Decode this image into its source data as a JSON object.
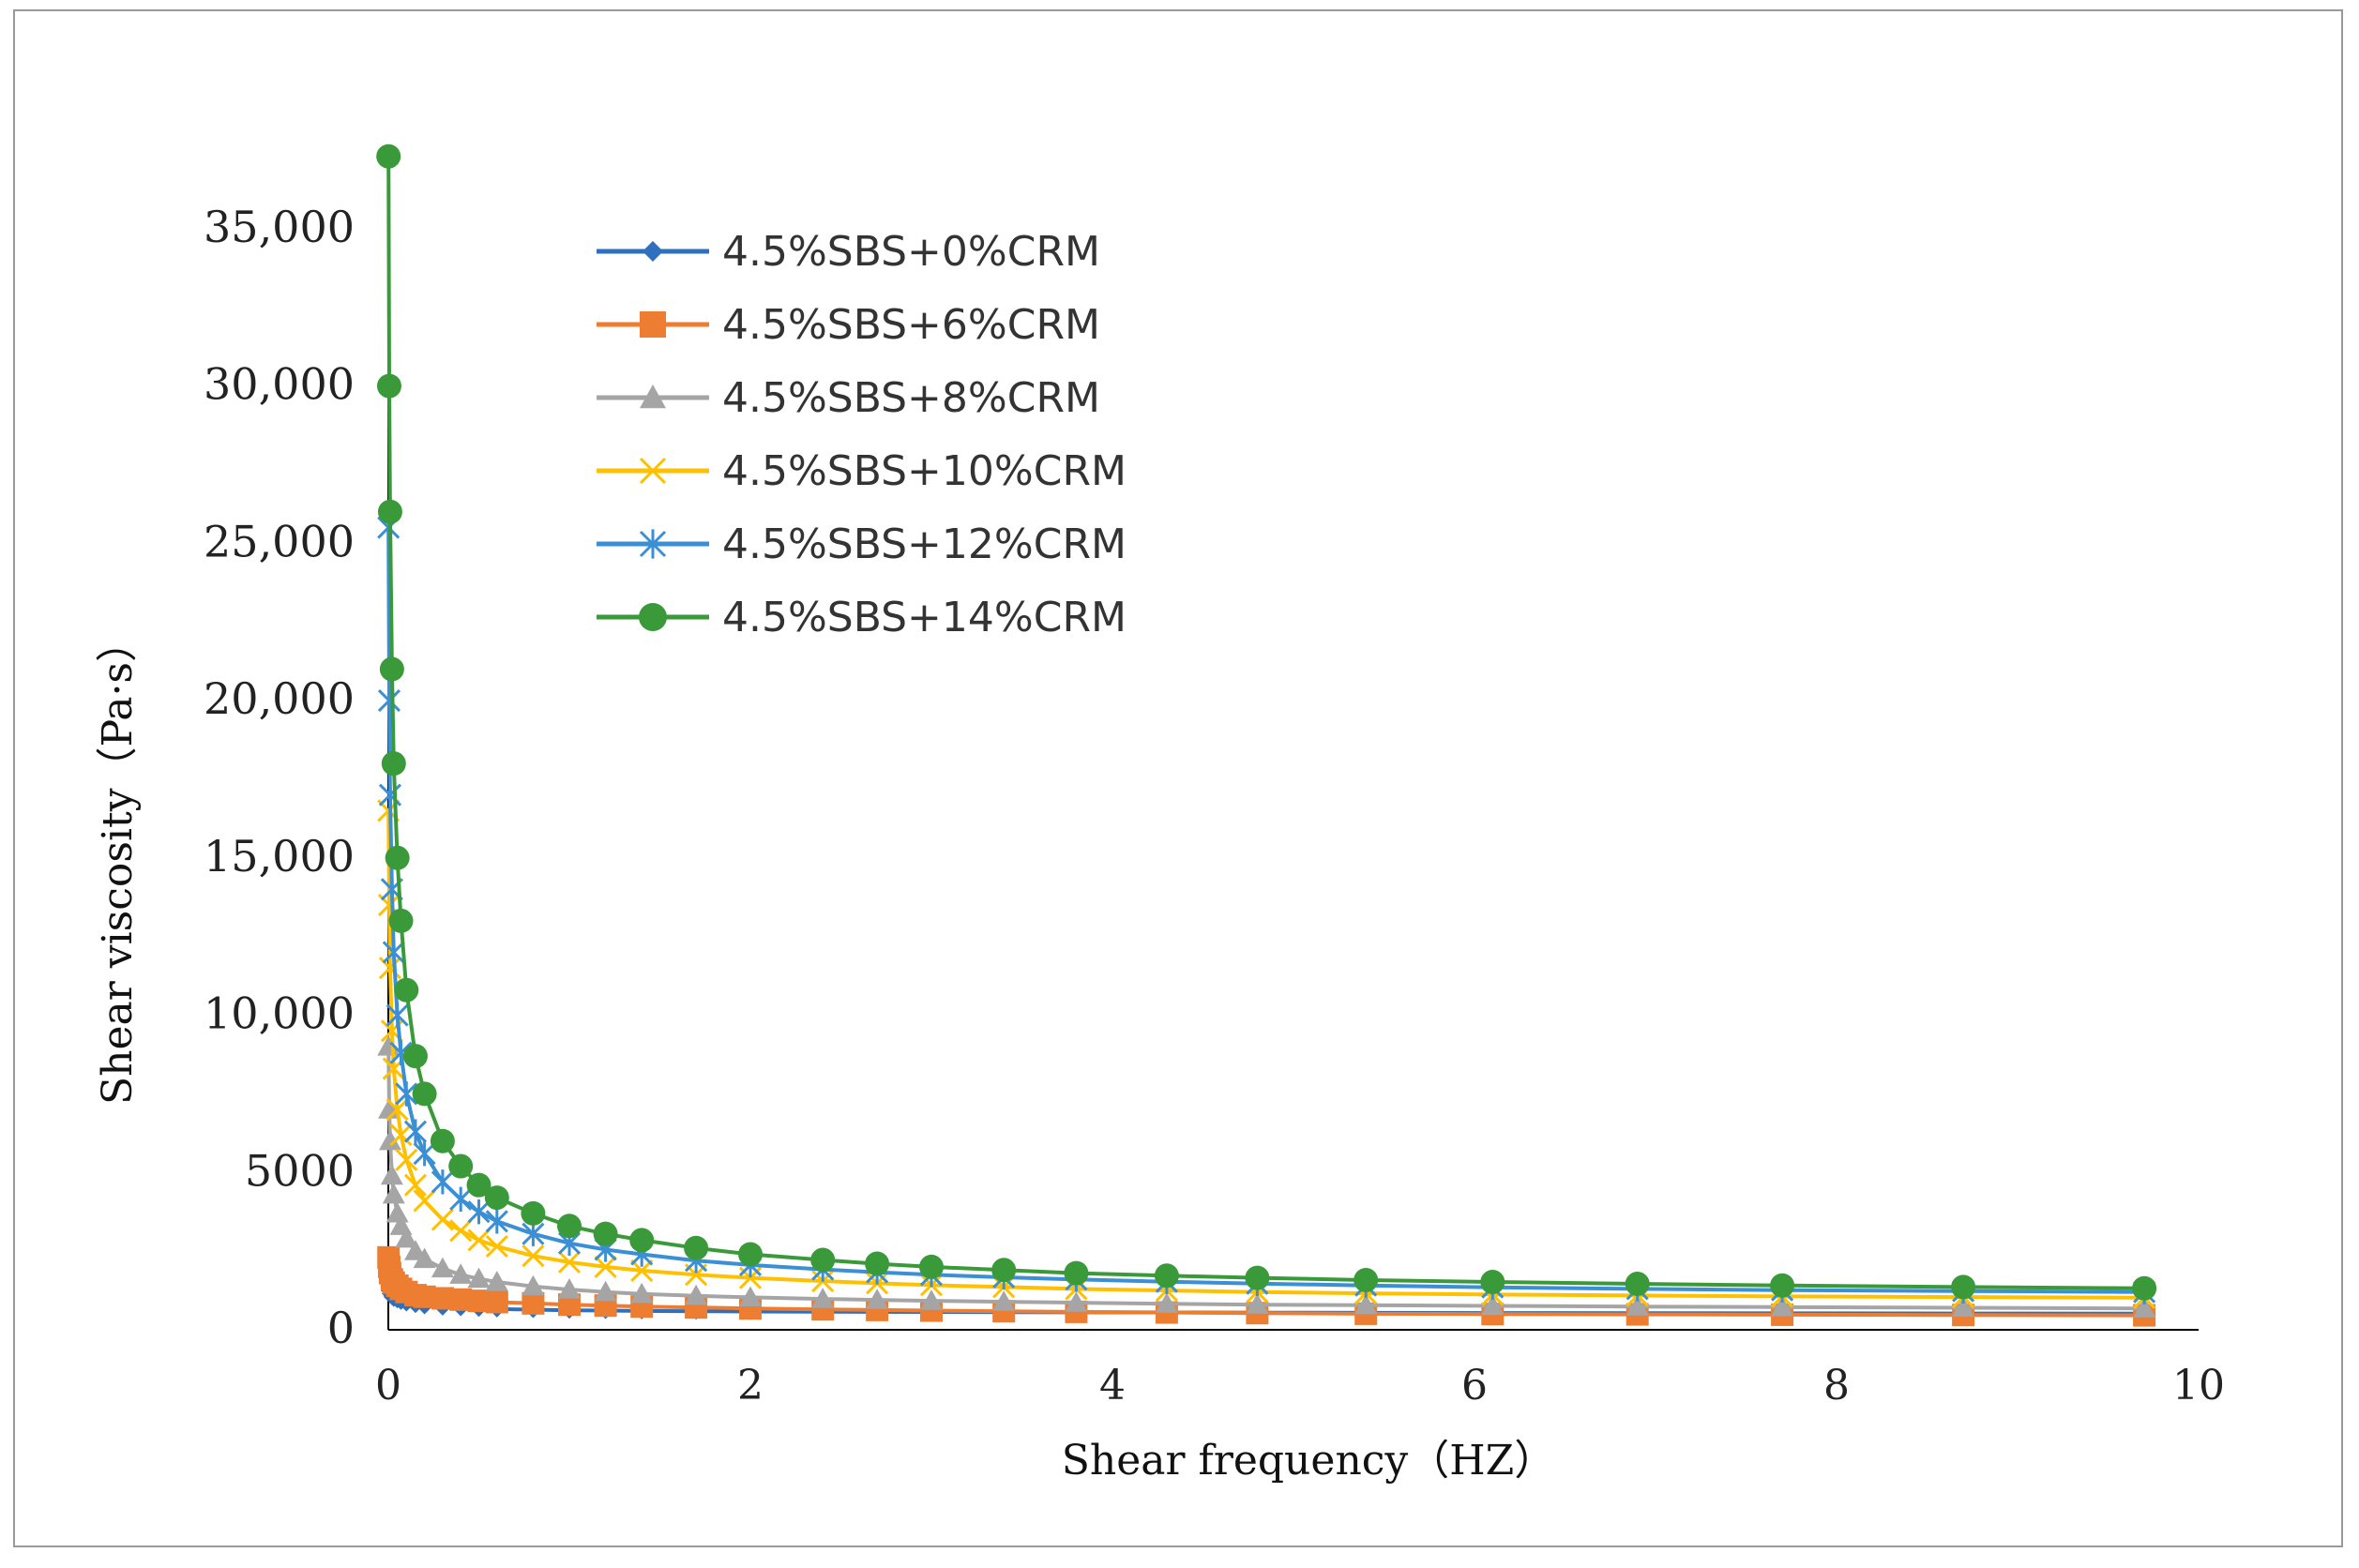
{
  "chart_data": {
    "type": "line",
    "title": "",
    "xlabel": "Shear frequency（HZ）",
    "ylabel": "Shear viscosity（Pa·s）",
    "xlim": [
      0,
      10
    ],
    "ylim": [
      0,
      37500
    ],
    "x_ticks": [
      0,
      2,
      4,
      6,
      8,
      10
    ],
    "x_tick_labels": [
      "0",
      "2",
      "4",
      "6",
      "8",
      "10"
    ],
    "y_ticks": [
      0,
      5000,
      10000,
      15000,
      20000,
      25000,
      30000,
      35000
    ],
    "y_tick_labels": [
      "0",
      "5000",
      "10,000",
      "15,000",
      "20,000",
      "25,000",
      "30,000",
      "35,000"
    ],
    "grid": false,
    "legend_position": "top-left",
    "x": [
      0.001,
      0.005,
      0.01,
      0.02,
      0.03,
      0.05,
      0.07,
      0.1,
      0.15,
      0.2,
      0.3,
      0.4,
      0.5,
      0.6,
      0.8,
      1.0,
      1.2,
      1.4,
      1.7,
      2.0,
      2.4,
      2.7,
      3.0,
      3.4,
      3.8,
      4.3,
      4.8,
      5.4,
      6.1,
      6.9,
      7.7,
      8.7,
      9.7
    ],
    "series": [
      {
        "name": "4.5%SBS+0%CRM",
        "color": "#2e6fbe",
        "marker": "diamond",
        "values": [
          1500,
          1250,
          1150,
          1050,
          1000,
          950,
          900,
          850,
          800,
          760,
          720,
          700,
          680,
          660,
          640,
          620,
          610,
          600,
          590,
          580,
          575,
          570,
          565,
          560,
          555,
          550,
          545,
          540,
          535,
          530,
          525,
          520,
          515
        ]
      },
      {
        "name": "4.5%SBS+6%CRM",
        "color": "#ed7d31",
        "marker": "square",
        "values": [
          2300,
          2000,
          1800,
          1600,
          1500,
          1400,
          1300,
          1200,
          1100,
          1050,
          1000,
          960,
          920,
          880,
          840,
          800,
          770,
          740,
          710,
          680,
          650,
          630,
          610,
          590,
          570,
          550,
          530,
          510,
          500,
          490,
          480,
          470,
          460
        ]
      },
      {
        "name": "4.5%SBS+8%CRM",
        "color": "#a5a5a5",
        "marker": "triangle",
        "values": [
          9000,
          7000,
          6000,
          4900,
          4300,
          3700,
          3300,
          2900,
          2500,
          2250,
          1950,
          1750,
          1620,
          1520,
          1380,
          1280,
          1200,
          1140,
          1080,
          1030,
          980,
          950,
          920,
          890,
          860,
          830,
          800,
          780,
          760,
          740,
          720,
          700,
          680
        ]
      },
      {
        "name": "4.5%SBS+10%CRM",
        "color": "#ffc000",
        "marker": "x",
        "values": [
          16500,
          13500,
          11500,
          9500,
          8300,
          7000,
          6200,
          5400,
          4600,
          4100,
          3500,
          3150,
          2850,
          2650,
          2350,
          2150,
          2000,
          1880,
          1750,
          1650,
          1550,
          1480,
          1420,
          1360,
          1300,
          1250,
          1200,
          1160,
          1120,
          1090,
          1060,
          1040,
          1020
        ]
      },
      {
        "name": "4.5%SBS+12%CRM",
        "color": "#3b8fd4",
        "marker": "star",
        "values": [
          25500,
          20000,
          17000,
          14000,
          12000,
          10000,
          8800,
          7500,
          6300,
          5600,
          4700,
          4150,
          3750,
          3450,
          3050,
          2750,
          2550,
          2400,
          2200,
          2060,
          1920,
          1830,
          1750,
          1670,
          1600,
          1530,
          1470,
          1410,
          1350,
          1300,
          1260,
          1230,
          1200
        ]
      },
      {
        "name": "4.5%SBS+14%CRM",
        "color": "#3a9a3a",
        "marker": "circle",
        "values": [
          37300,
          30000,
          26000,
          21000,
          18000,
          15000,
          13000,
          10800,
          8700,
          7500,
          6000,
          5200,
          4600,
          4200,
          3700,
          3300,
          3050,
          2850,
          2600,
          2400,
          2220,
          2100,
          2000,
          1900,
          1800,
          1720,
          1650,
          1580,
          1520,
          1460,
          1410,
          1360,
          1320
        ]
      }
    ]
  }
}
